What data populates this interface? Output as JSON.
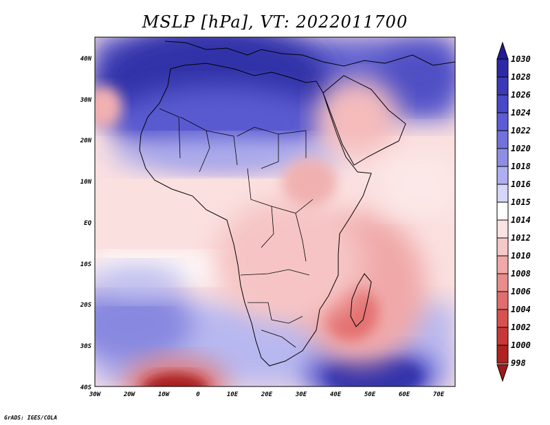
{
  "title": "MSLP [hPa], VT: 2022011700",
  "footer": "GrADS: IGES/COLA",
  "map": {
    "region": "Africa",
    "lon_range": [
      -30,
      75
    ],
    "lat_range": [
      -40,
      45
    ],
    "lon_ticks": [
      "30W",
      "20W",
      "10W",
      "0",
      "10E",
      "20E",
      "30E",
      "40E",
      "50E",
      "60E",
      "70E"
    ],
    "lat_ticks": [
      "40N",
      "30N",
      "20N",
      "10N",
      "EQ",
      "10S",
      "20S",
      "30S",
      "40S"
    ]
  },
  "colorbar": {
    "labels": [
      "1030",
      "1028",
      "1026",
      "1024",
      "1022",
      "1020",
      "1018",
      "1016",
      "1015",
      "1014",
      "1012",
      "1010",
      "1008",
      "1006",
      "1004",
      "1002",
      "1000",
      "998"
    ],
    "colors": [
      "#241a94",
      "#2d2aa8",
      "#3a3ab8",
      "#4848c8",
      "#5c5cd4",
      "#7272dc",
      "#8e8ee4",
      "#aeaef0",
      "#d6d6fa",
      "#ffffff",
      "#fbe3e3",
      "#f7c8c8",
      "#f0a8a8",
      "#ea8c8c",
      "#e06e6e",
      "#d85050",
      "#c83838",
      "#b02222",
      "#a01818"
    ]
  },
  "colors": {
    "text": "#000000",
    "land_border": "#000000"
  }
}
